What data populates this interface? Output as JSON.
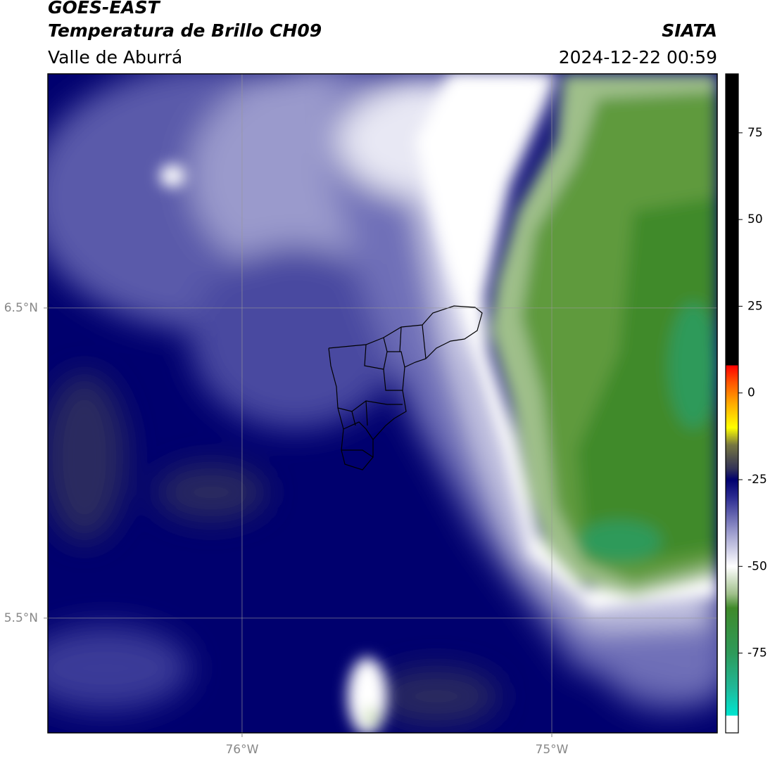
{
  "header": {
    "title": "GOES-EAST",
    "subtitle": "Temperatura de Brillo CH09",
    "region": "Valle de Aburrá",
    "source": "SIATA",
    "datetime": "2024-12-22 00:59"
  },
  "map": {
    "lonlim": [
      -76.627,
      -74.466
    ],
    "latlim": [
      5.13,
      7.255
    ],
    "lonticks": [
      {
        "value": -76,
        "label": "76°W"
      },
      {
        "value": -75,
        "label": "75°W"
      }
    ],
    "latticks": [
      {
        "value": 5.5,
        "label": "5.5°N"
      },
      {
        "value": 6.5,
        "label": "6.5°N"
      }
    ],
    "grid": true
  },
  "colorbar": {
    "lim": [
      -98,
      92
    ],
    "ticks": [
      -75,
      -50,
      -25,
      0,
      25,
      50,
      75
    ],
    "stops": [
      {
        "value": -98,
        "color": "#ffffff"
      },
      {
        "value": -93,
        "color": "#ffffff"
      },
      {
        "value": -93,
        "color": "#00e5d0"
      },
      {
        "value": -85,
        "color": "#20b898"
      },
      {
        "value": -75,
        "color": "#2e9a5a"
      },
      {
        "value": -62,
        "color": "#3f8a2a"
      },
      {
        "value": -58,
        "color": "#9fbf8a"
      },
      {
        "value": -50,
        "color": "#ffffff"
      },
      {
        "value": -40,
        "color": "#9a9acc"
      },
      {
        "value": -30,
        "color": "#2a2a90"
      },
      {
        "value": -25,
        "color": "#00006e"
      },
      {
        "value": -22,
        "color": "#303058"
      },
      {
        "value": -15,
        "color": "#777740"
      },
      {
        "value": -10,
        "color": "#ffff00"
      },
      {
        "value": -3,
        "color": "#ffaa00"
      },
      {
        "value": 3,
        "color": "#ff5500"
      },
      {
        "value": 8,
        "color": "#ff0000"
      },
      {
        "value": 8,
        "color": "#000000"
      },
      {
        "value": 92,
        "color": "#000000"
      }
    ]
  }
}
